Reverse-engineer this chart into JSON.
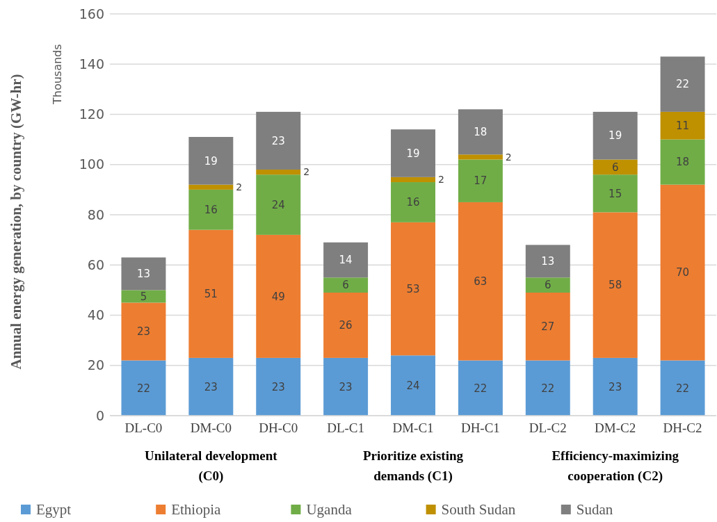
{
  "chart_data": {
    "type": "bar",
    "stacked": true,
    "ylabel": "Annual energy generation, by country (GW-hr)",
    "categories": [
      "DL-C0",
      "DM-C0",
      "DH-C0",
      "DL-C1",
      "DM-C1",
      "DH-C1",
      "DL-C2",
      "DM-C2",
      "DH-C2"
    ],
    "series": [
      {
        "name": "Egypt",
        "color": "#5b9bd5",
        "values": [
          22,
          23,
          23,
          23,
          24,
          22,
          22,
          23,
          22
        ]
      },
      {
        "name": "Ethiopia",
        "color": "#ed7d31",
        "values": [
          23,
          51,
          49,
          26,
          53,
          63,
          27,
          58,
          70
        ]
      },
      {
        "name": "Uganda",
        "color": "#70ad47",
        "values": [
          5,
          16,
          24,
          6,
          16,
          17,
          6,
          15,
          18
        ]
      },
      {
        "name": "South Sudan",
        "color": "#bf9000",
        "values": [
          null,
          2,
          2,
          null,
          2,
          2,
          null,
          6,
          11
        ]
      },
      {
        "name": "Sudan",
        "color": "#7f7f7f",
        "values": [
          13,
          19,
          23,
          14,
          19,
          18,
          13,
          19,
          22
        ]
      }
    ],
    "ylim": [
      0,
      160
    ],
    "yticks": [
      0,
      20,
      40,
      60,
      80,
      100,
      120,
      140,
      160
    ],
    "grid": "y",
    "legend": "bottom",
    "data_labels": true,
    "annotations": [
      "Thousands",
      "Unilateral development (C0)",
      "Prioritize existing demands (C1)",
      "Efficiency-maximizing cooperation (C2)"
    ]
  }
}
